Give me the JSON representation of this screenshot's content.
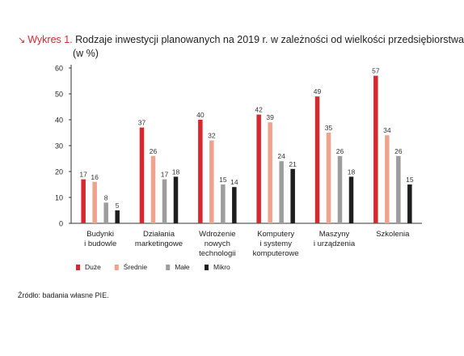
{
  "figure": {
    "prefix_arrow": "↘",
    "prefix": "Wykres 1.",
    "source": "Źródło: badania własne PIE."
  },
  "colors": {
    "duze": "#d7282f",
    "srednie": "#f1a28c",
    "male": "#9d9d9d",
    "mikro": "#1e1e1e",
    "axis": "#333333",
    "grid": "#e6e6e6"
  },
  "chart_data": {
    "type": "bar",
    "title": "Rodzaje inwestycji planowanych na 2019 r. w zależności od wielkości przedsiębiorstwa",
    "subtitle": "(w %)",
    "categories": [
      [
        "Budynki",
        "i budowle"
      ],
      [
        "Działania",
        "marketingowe"
      ],
      [
        "Wdrożenie",
        "nowych",
        "technologii"
      ],
      [
        "Komputery",
        "i systemy",
        "komputerowe"
      ],
      [
        "Maszyny",
        "i urządzenia"
      ],
      [
        "Szkolenia"
      ]
    ],
    "series": [
      {
        "name": "Duże",
        "values": [
          17,
          37,
          40,
          42,
          49,
          57
        ]
      },
      {
        "name": "Średnie",
        "values": [
          16,
          26,
          32,
          39,
          35,
          34
        ]
      },
      {
        "name": "Małe",
        "values": [
          8,
          17,
          15,
          24,
          26,
          26
        ]
      },
      {
        "name": "Mikro",
        "values": [
          5,
          18,
          14,
          21,
          18,
          15
        ]
      }
    ],
    "ylim": [
      0,
      60
    ],
    "yticks": [
      0,
      10,
      20,
      30,
      40,
      50,
      60
    ],
    "legend": "bottom-left",
    "grid": false
  }
}
